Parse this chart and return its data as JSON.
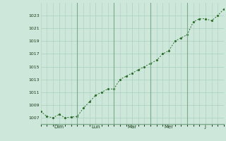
{
  "background_color": "#cde8da",
  "plot_bg_color": "#cde8da",
  "line_color": "#2d6e2d",
  "marker_color": "#2d6e2d",
  "grid_color": "#aacfbe",
  "vline_color": "#7aaa8a",
  "tick_color": "#1a3a1a",
  "ylim": [
    1006.0,
    1025.0
  ],
  "yticks": [
    1007,
    1009,
    1011,
    1013,
    1015,
    1017,
    1019,
    1021,
    1023
  ],
  "day_labels": [
    "Dim",
    "Lun",
    "Mar",
    "Mer",
    "J"
  ],
  "day_tick_positions": [
    12,
    36,
    60,
    84,
    108
  ],
  "vline_positions": [
    24,
    48,
    72,
    96
  ],
  "xlim": [
    0,
    120
  ],
  "x_values": [
    0,
    4,
    8,
    12,
    16,
    20,
    24,
    28,
    32,
    36,
    40,
    44,
    48,
    52,
    56,
    60,
    64,
    68,
    72,
    76,
    80,
    84,
    88,
    92,
    96,
    100,
    104,
    108,
    112,
    116,
    120
  ],
  "y_values": [
    1008.0,
    1007.2,
    1007.0,
    1007.5,
    1007.0,
    1007.1,
    1007.2,
    1008.5,
    1009.5,
    1010.5,
    1011.0,
    1011.5,
    1011.5,
    1013.0,
    1013.5,
    1014.0,
    1014.5,
    1015.0,
    1015.5,
    1016.0,
    1017.0,
    1017.5,
    1019.0,
    1019.5,
    1020.0,
    1022.0,
    1022.5,
    1022.5,
    1022.2,
    1023.0,
    1024.0
  ]
}
